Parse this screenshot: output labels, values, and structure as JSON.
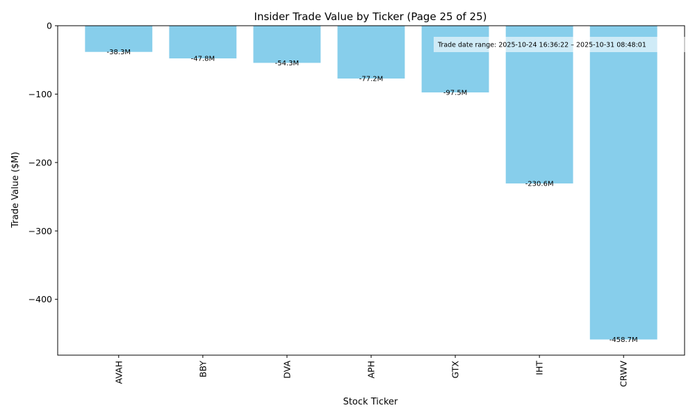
{
  "chart_data": {
    "type": "bar",
    "title": "Insider Trade Value by Ticker (Page 25 of 25)",
    "xlabel": "Stock Ticker",
    "ylabel": "Trade Value ($M)",
    "categories": [
      "AVAH",
      "BBY",
      "DVA",
      "APH",
      "GTX",
      "IHT",
      "CRWV"
    ],
    "values": [
      -38.3,
      -47.8,
      -54.3,
      -77.2,
      -97.5,
      -230.6,
      -458.7
    ],
    "data_labels": [
      "-38.3M",
      "-47.8M",
      "-54.3M",
      "-77.2M",
      "-97.5M",
      "-230.6M",
      "-458.7M"
    ],
    "ylim": [
      -481.6,
      0
    ],
    "yticks": [
      0,
      -100,
      -200,
      -300,
      -400
    ],
    "ytick_labels": [
      "0",
      "−100",
      "−200",
      "−300",
      "−400"
    ],
    "annotation": "Trade date range: 2025-10-24 16:36:22 – 2025-10-31 08:48:01",
    "grid": false,
    "bar_color": "#87CEEB"
  }
}
